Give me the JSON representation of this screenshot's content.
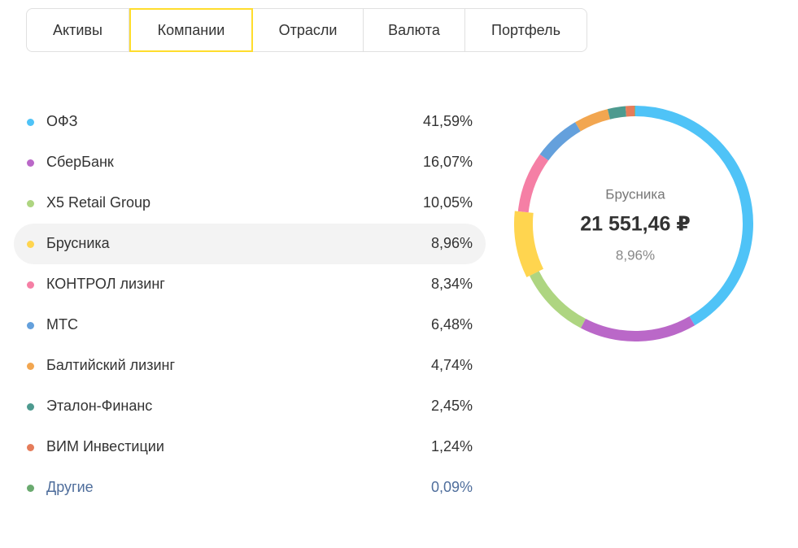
{
  "tabs": [
    "Активы",
    "Компании",
    "Отрасли",
    "Валюта",
    "Портфель"
  ],
  "chart_data": {
    "type": "donut",
    "categories": [
      "ОФЗ",
      "СберБанк",
      "X5 Retail Group",
      "Брусника",
      "КОНТРОЛ лизинг",
      "МТС",
      "Балтийский лизинг",
      "Эталон-Финанс",
      "ВИМ Инвестиции",
      "Другие"
    ],
    "values": [
      41.59,
      16.07,
      10.05,
      8.96,
      8.34,
      6.48,
      4.74,
      2.45,
      1.24,
      0.09
    ],
    "value_labels": [
      "41,59%",
      "16,07%",
      "10,05%",
      "8,96%",
      "8,34%",
      "6,48%",
      "4,74%",
      "2,45%",
      "1,24%",
      "0,09%"
    ],
    "colors": [
      "#4fc3f7",
      "#ba68c8",
      "#aed581",
      "#ffd54f",
      "#f57fa5",
      "#64a0dc",
      "#f2a650",
      "#4d9a8f",
      "#e57c5a",
      "#6aaa6f"
    ],
    "center": {
      "name": "Брусника",
      "amount": "21 551,46 ₽",
      "share": "8,96%"
    }
  }
}
